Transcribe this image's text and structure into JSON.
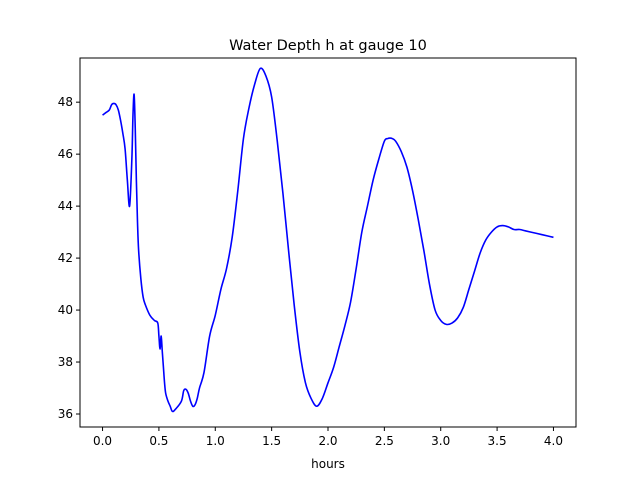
{
  "chart_data": {
    "type": "line",
    "title": "Water Depth h at gauge 10",
    "xlabel": "hours",
    "ylabel": "",
    "xlim": [
      -0.2,
      4.2
    ],
    "ylim": [
      35.5,
      49.7
    ],
    "xticks": [
      0.0,
      0.5,
      1.0,
      1.5,
      2.0,
      2.5,
      3.0,
      3.5,
      4.0
    ],
    "xtick_labels": [
      "0.0",
      "0.5",
      "1.0",
      "1.5",
      "2.0",
      "2.5",
      "3.0",
      "3.5",
      "4.0"
    ],
    "yticks": [
      36,
      38,
      40,
      42,
      44,
      46,
      48
    ],
    "ytick_labels": [
      "36",
      "38",
      "40",
      "42",
      "44",
      "46",
      "48"
    ],
    "grid": false,
    "series": [
      {
        "color": "#0000ff",
        "x": [
          0.0,
          0.03,
          0.06,
          0.08,
          0.1,
          0.12,
          0.14,
          0.16,
          0.18,
          0.2,
          0.22,
          0.24,
          0.26,
          0.27,
          0.28,
          0.29,
          0.3,
          0.31,
          0.32,
          0.34,
          0.36,
          0.38,
          0.42,
          0.46,
          0.49,
          0.5,
          0.51,
          0.52,
          0.53,
          0.54,
          0.55,
          0.56,
          0.58,
          0.6,
          0.62,
          0.65,
          0.7,
          0.72,
          0.74,
          0.76,
          0.78,
          0.8,
          0.82,
          0.84,
          0.86,
          0.9,
          0.95,
          1.0,
          1.05,
          1.1,
          1.15,
          1.2,
          1.25,
          1.3,
          1.35,
          1.4,
          1.45,
          1.5,
          1.55,
          1.6,
          1.65,
          1.7,
          1.75,
          1.8,
          1.85,
          1.9,
          1.95,
          2.0,
          2.05,
          2.1,
          2.15,
          2.2,
          2.25,
          2.3,
          2.35,
          2.4,
          2.45,
          2.5,
          2.53,
          2.55,
          2.57,
          2.6,
          2.65,
          2.7,
          2.75,
          2.8,
          2.85,
          2.9,
          2.95,
          3.0,
          3.05,
          3.1,
          3.15,
          3.2,
          3.25,
          3.3,
          3.35,
          3.4,
          3.45,
          3.5,
          3.55,
          3.6,
          3.65,
          3.7,
          3.75,
          3.8,
          3.85,
          3.9,
          3.95,
          4.0
        ],
        "y": [
          47.5,
          47.6,
          47.7,
          47.9,
          47.95,
          47.9,
          47.7,
          47.3,
          46.8,
          46.2,
          45.0,
          44.0,
          45.8,
          47.5,
          48.3,
          47.0,
          45.0,
          43.4,
          42.3,
          41.2,
          40.5,
          40.2,
          39.8,
          39.6,
          39.5,
          39.0,
          38.5,
          39.0,
          38.4,
          37.8,
          37.2,
          36.8,
          36.5,
          36.3,
          36.1,
          36.2,
          36.5,
          36.9,
          36.95,
          36.8,
          36.5,
          36.3,
          36.35,
          36.6,
          37.0,
          37.6,
          39.0,
          39.8,
          40.8,
          41.6,
          42.8,
          44.6,
          46.6,
          47.8,
          48.7,
          49.3,
          49.0,
          48.2,
          46.5,
          44.5,
          42.3,
          40.2,
          38.4,
          37.2,
          36.6,
          36.3,
          36.6,
          37.2,
          37.8,
          38.6,
          39.4,
          40.3,
          41.6,
          43.0,
          44.0,
          45.0,
          45.8,
          46.5,
          46.6,
          46.62,
          46.6,
          46.5,
          46.1,
          45.5,
          44.6,
          43.5,
          42.3,
          41.0,
          40.0,
          39.6,
          39.45,
          39.5,
          39.7,
          40.1,
          40.8,
          41.5,
          42.2,
          42.7,
          43.0,
          43.2,
          43.25,
          43.2,
          43.1,
          43.1,
          43.05,
          43.0,
          42.95,
          42.9,
          42.85,
          42.8
        ]
      }
    ]
  }
}
